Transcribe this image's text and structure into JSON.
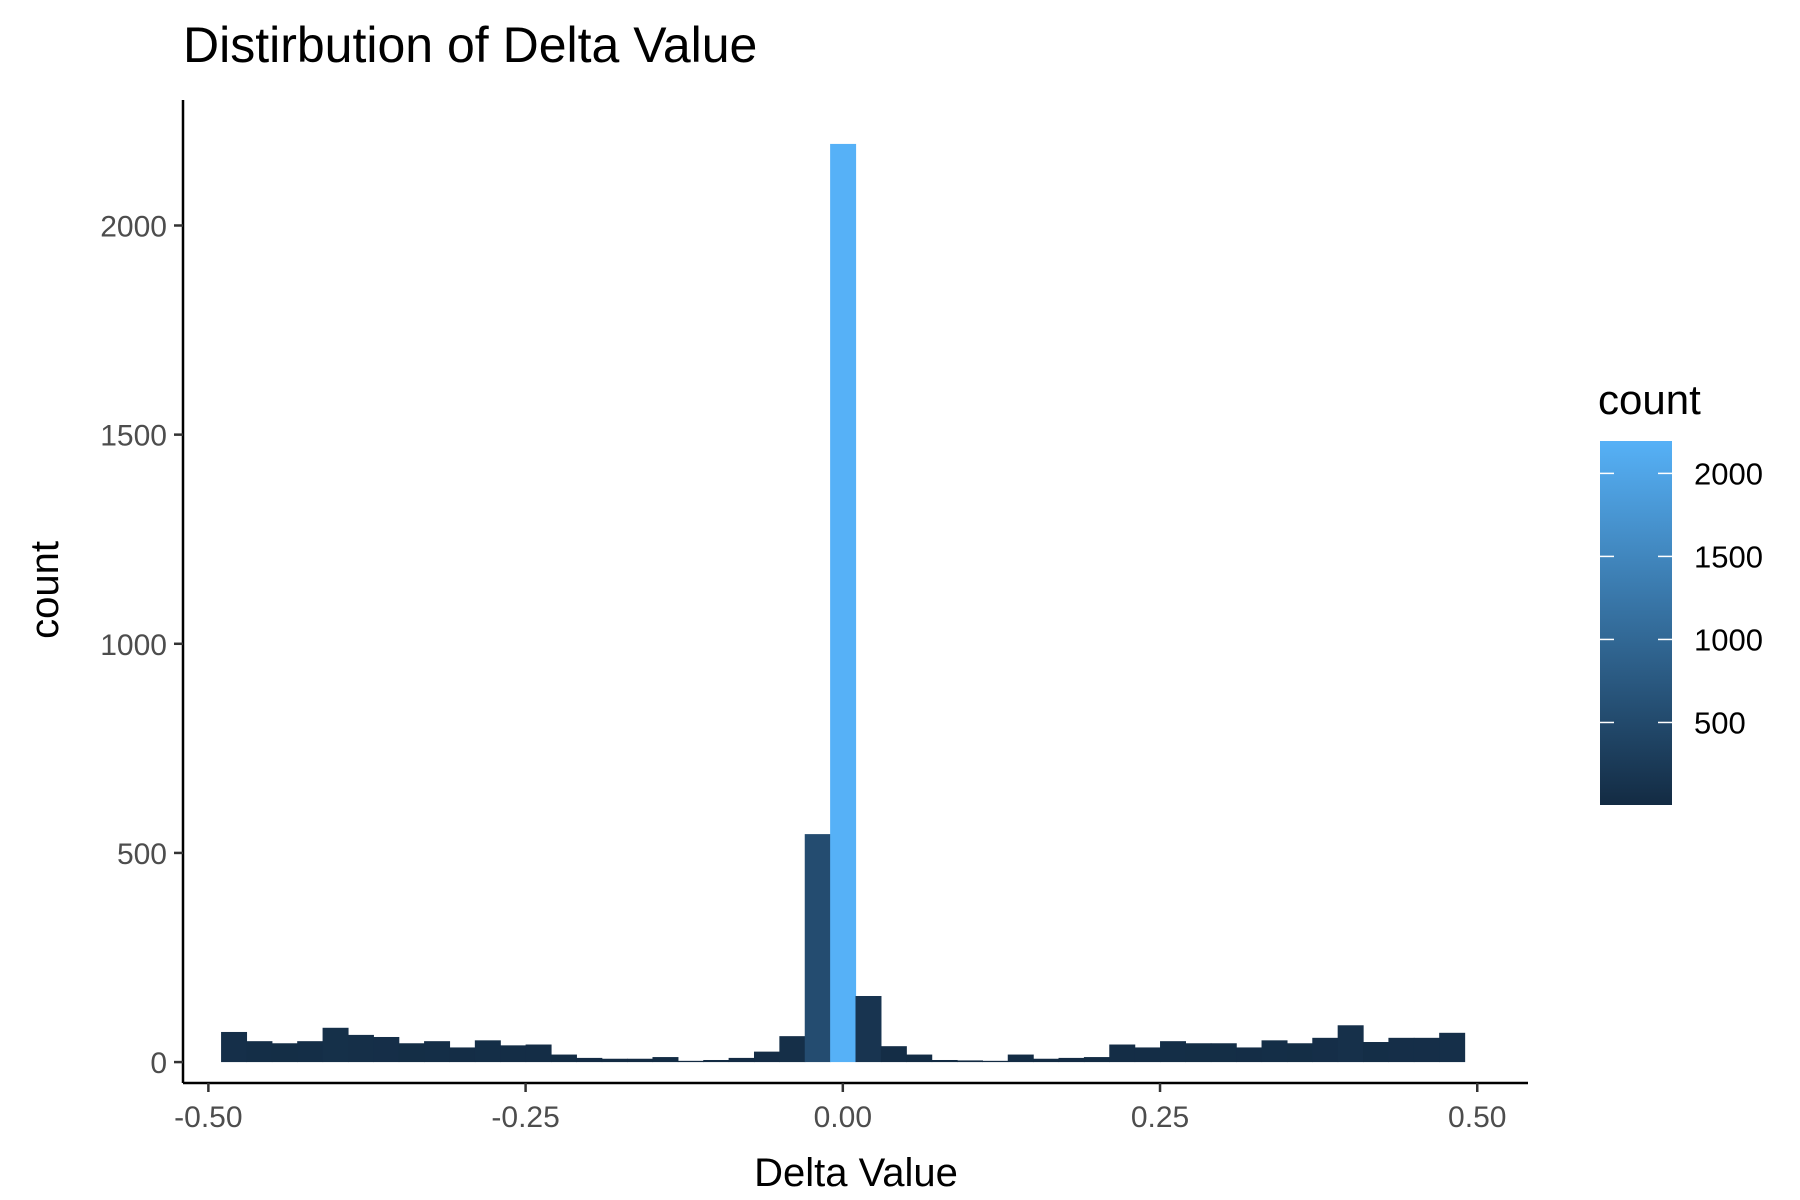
{
  "chart_data": {
    "type": "bar",
    "title": "Distirbution of Delta Value",
    "xlabel": "Delta Value",
    "ylabel": "count",
    "xlim": [
      -0.52,
      0.54
    ],
    "ylim": [
      -50,
      2300
    ],
    "x_ticks": [
      -0.5,
      -0.25,
      0.0,
      0.25,
      0.5
    ],
    "x_tick_labels": [
      "-0.50",
      "-0.25",
      "0.00",
      "0.25",
      "0.50"
    ],
    "y_ticks": [
      0,
      500,
      1000,
      1500,
      2000
    ],
    "y_tick_labels": [
      "0",
      "500",
      "1000",
      "1500",
      "2000"
    ],
    "bin_width": 0.02,
    "bin_centers": [
      -0.48,
      -0.46,
      -0.44,
      -0.42,
      -0.4,
      -0.38,
      -0.36,
      -0.34,
      -0.32,
      -0.3,
      -0.28,
      -0.26,
      -0.24,
      -0.22,
      -0.2,
      -0.18,
      -0.16,
      -0.14,
      -0.12,
      -0.1,
      -0.08,
      -0.06,
      -0.04,
      -0.02,
      0.0,
      0.02,
      0.04,
      0.06,
      0.08,
      0.1,
      0.12,
      0.14,
      0.16,
      0.18,
      0.2,
      0.22,
      0.24,
      0.26,
      0.28,
      0.3,
      0.32,
      0.34,
      0.36,
      0.38,
      0.4,
      0.42,
      0.44,
      0.46,
      0.48
    ],
    "values": [
      72,
      50,
      45,
      50,
      82,
      65,
      60,
      45,
      50,
      35,
      52,
      40,
      42,
      18,
      10,
      8,
      8,
      12,
      3,
      5,
      10,
      25,
      62,
      545,
      2195,
      158,
      38,
      18,
      5,
      4,
      3,
      18,
      8,
      10,
      12,
      42,
      35,
      50,
      45,
      45,
      35,
      52,
      45,
      58,
      88,
      48,
      58,
      58,
      70
    ],
    "fill_scale": {
      "low_color": "#132B43",
      "high_color": "#56B1F7",
      "min": 3,
      "max": 2195
    },
    "legend": {
      "title": "count",
      "position": "right",
      "breaks": [
        500,
        1000,
        1500,
        2000
      ],
      "labels": [
        "500",
        "1000",
        "1500",
        "2000"
      ]
    },
    "grid": false
  }
}
